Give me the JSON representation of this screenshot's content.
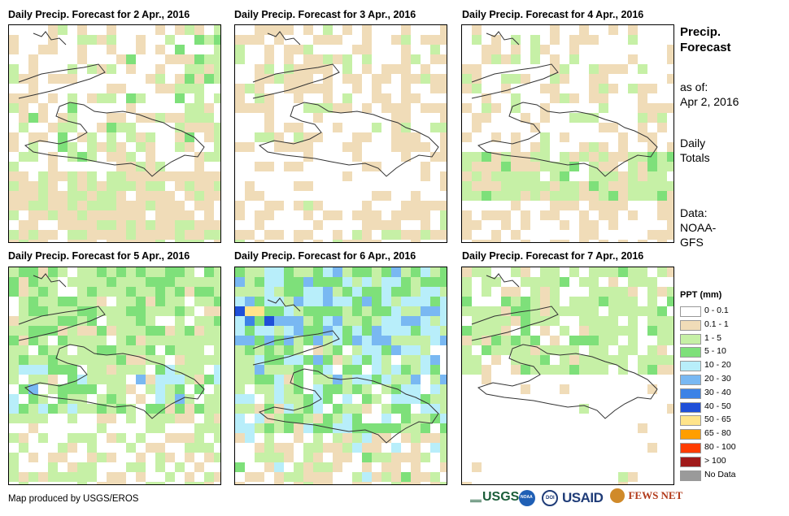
{
  "panels": [
    {
      "title": "Daily Precip. Forecast for 2 Apr., 2016",
      "seed": 11,
      "profile": "p2"
    },
    {
      "title": "Daily Precip. Forecast for 3 Apr., 2016",
      "seed": 23,
      "profile": "p3"
    },
    {
      "title": "Daily Precip. Forecast for 4 Apr., 2016",
      "seed": 37,
      "profile": "p4"
    },
    {
      "title": "Daily Precip. Forecast for 5 Apr., 2016",
      "seed": 41,
      "profile": "p5"
    },
    {
      "title": "Daily Precip. Forecast for 6 Apr., 2016",
      "seed": 53,
      "profile": "p6"
    },
    {
      "title": "Daily Precip. Forecast for 7 Apr., 2016",
      "seed": 67,
      "profile": "p7"
    }
  ],
  "sidebar": {
    "title_line1": "Precip.",
    "title_line2": "Forecast",
    "asof_label": "as of:",
    "asof_date": "Apr 2, 2016",
    "totals_line1": "Daily",
    "totals_line2": "Totals",
    "data_line1": "Data:",
    "data_line2": "NOAA-",
    "data_line3": "GFS"
  },
  "legend": {
    "title": "PPT (mm)",
    "items": [
      {
        "label": "0 - 0.1",
        "color": "#ffffff"
      },
      {
        "label": "0.1 - 1",
        "color": "#f0dcb8"
      },
      {
        "label": "1 - 5",
        "color": "#c6f0a6"
      },
      {
        "label": "5 - 10",
        "color": "#7ee07a"
      },
      {
        "label": "10 - 20",
        "color": "#b8eefa"
      },
      {
        "label": "20 - 30",
        "color": "#79b8f2"
      },
      {
        "label": "30 - 40",
        "color": "#3c82e6"
      },
      {
        "label": "40 - 50",
        "color": "#1f4fd8"
      },
      {
        "label": "50 - 65",
        "color": "#ffe48a"
      },
      {
        "label": "65 - 80",
        "color": "#ff9e00"
      },
      {
        "label": "80 - 100",
        "color": "#ff3c00"
      },
      {
        "label": "> 100",
        "color": "#a01a1a"
      },
      {
        "label": "No Data",
        "color": "#9a9a9a"
      }
    ]
  },
  "credit": "Map produced by USGS/EROS",
  "logos": [
    "USGS",
    "NOAA",
    "DOI",
    "USAID",
    "FEWS NET"
  ]
}
